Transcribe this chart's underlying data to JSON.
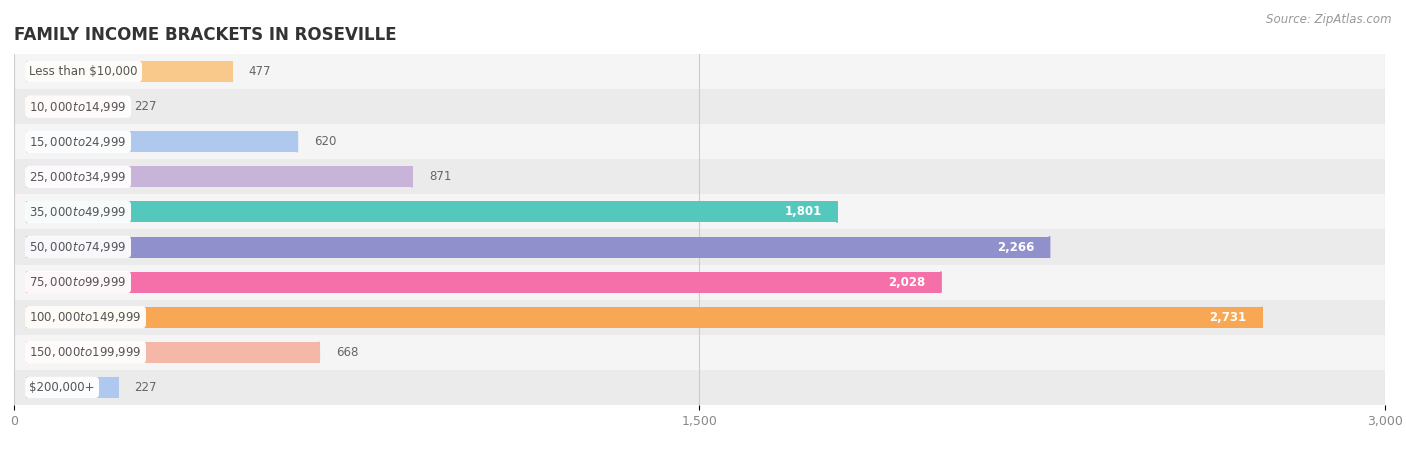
{
  "title": "FAMILY INCOME BRACKETS IN ROSEVILLE",
  "source": "Source: ZipAtlas.com",
  "categories": [
    "Less than $10,000",
    "$10,000 to $14,999",
    "$15,000 to $24,999",
    "$25,000 to $34,999",
    "$35,000 to $49,999",
    "$50,000 to $74,999",
    "$75,000 to $99,999",
    "$100,000 to $149,999",
    "$150,000 to $199,999",
    "$200,000+"
  ],
  "values": [
    477,
    227,
    620,
    871,
    1801,
    2266,
    2028,
    2731,
    668,
    227
  ],
  "bar_colors": [
    "#f8c98a",
    "#f5a8a0",
    "#aec8ee",
    "#c8b4d8",
    "#55c8be",
    "#9090cc",
    "#f570a8",
    "#f8a855",
    "#f5b8a8",
    "#aec8f0"
  ],
  "row_bg_colors": [
    "#f5f5f5",
    "#ebebeb"
  ],
  "xlim": [
    0,
    3000
  ],
  "xticks": [
    0,
    1500,
    3000
  ],
  "value_threshold_inside": 1000,
  "bg_color": "#ffffff",
  "title_color": "#333333",
  "source_color": "#999999",
  "bar_height": 0.6,
  "grid_color": "#cccccc",
  "tick_color": "#888888",
  "label_text_color": "#555555",
  "value_inside_color": "#ffffff",
  "value_outside_color": "#666666"
}
